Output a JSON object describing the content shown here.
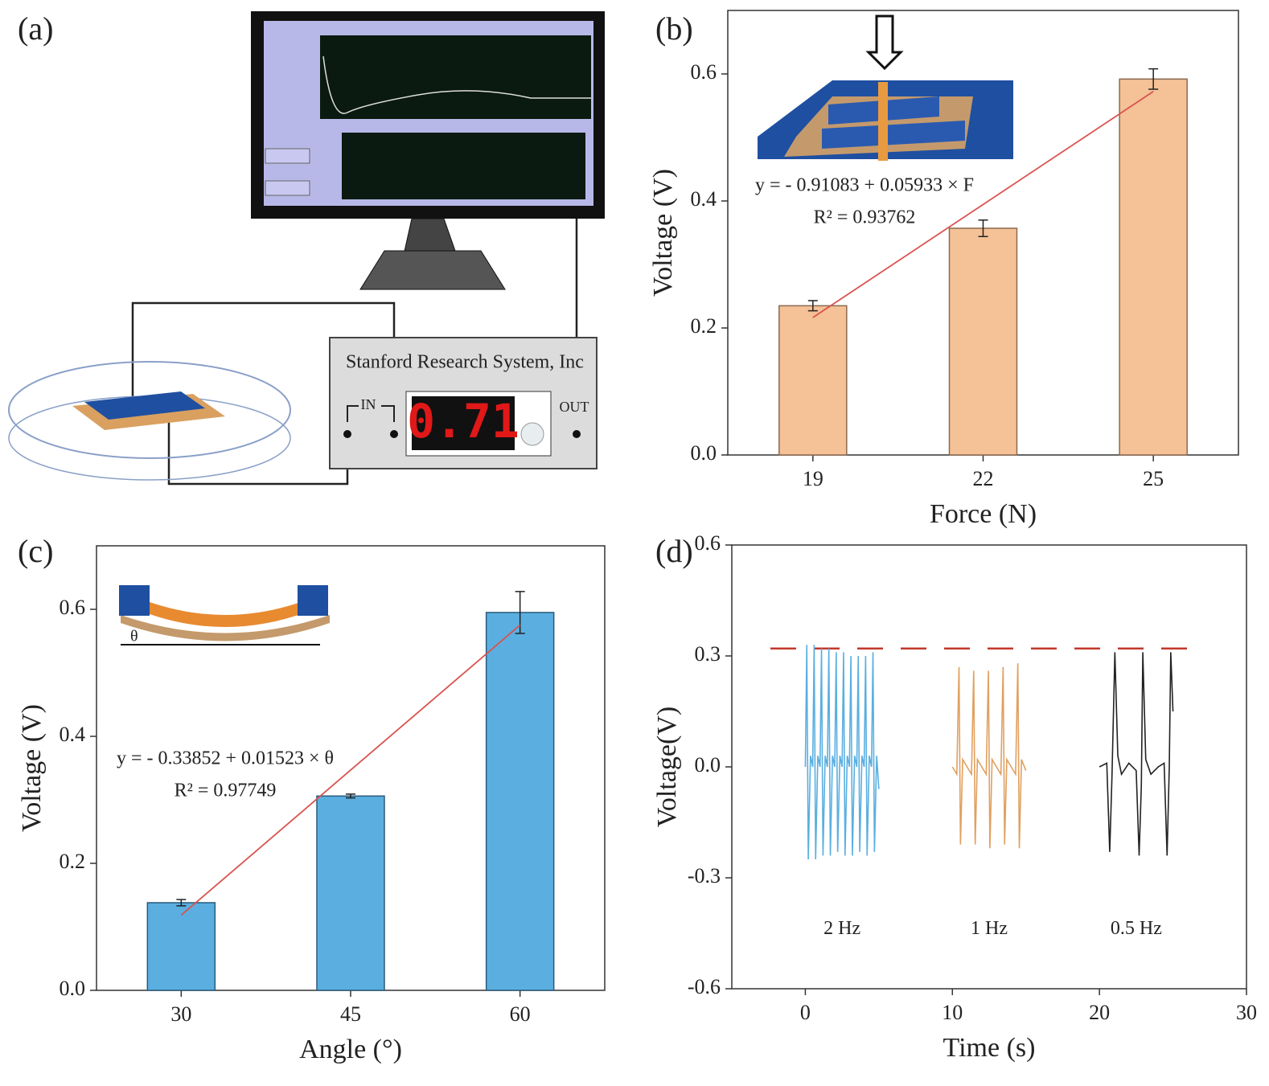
{
  "diagram": {
    "label": "(a)",
    "instrument": "Stanford Research System, Inc",
    "input": "IN",
    "output": "OUT",
    "display": "0.71"
  },
  "chart_data": [
    {
      "type": "bar",
      "label": "(b)",
      "xlabel": "Force (N)",
      "ylabel": "Voltage (V)",
      "x": [
        19,
        22,
        25
      ],
      "values": [
        0.235,
        0.357,
        0.592
      ],
      "errors": [
        0.008,
        0.013,
        0.016
      ],
      "color": "#f5c196",
      "edge": "#8a6a50",
      "xlim": [
        17.5,
        26.5
      ],
      "xticks": [
        19,
        22,
        25
      ],
      "ylim": [
        0,
        0.7
      ],
      "yticks": [
        {
          "value": 0,
          "label": "0.0"
        },
        0.2,
        0.4,
        0.6
      ],
      "fit": {
        "intercept": -0.91083,
        "slope": 0.05933,
        "color": "#d9534f"
      },
      "annotations": [
        "y = - 0.91083 + 0.05933 × F",
        "R² = 0.93762"
      ]
    },
    {
      "type": "bar",
      "label": "(c)",
      "xlabel": "Angle (°)",
      "ylabel": "Voltage (V)",
      "x": [
        30,
        45,
        60
      ],
      "values": [
        0.138,
        0.306,
        0.595
      ],
      "errors": [
        0.005,
        0.003,
        0.033
      ],
      "color": "#5aafe0",
      "edge": "#2a5a7a",
      "xlim": [
        22.5,
        67.5
      ],
      "xticks": [
        30,
        45,
        60
      ],
      "ylim": [
        0,
        0.7
      ],
      "yticks": [
        {
          "value": 0,
          "label": "0.0"
        },
        0.2,
        0.4,
        0.6
      ],
      "fit": {
        "intercept": -0.33852,
        "slope": 0.01523,
        "color": "#d9534f"
      },
      "annotations": [
        "y = - 0.33852 + 0.01523 × θ",
        "R² = 0.97749"
      ]
    },
    {
      "type": "line",
      "label": "(d)",
      "xlabel": "Time (s)",
      "ylabel": "Voltage(V)",
      "xlim": [
        -5,
        30
      ],
      "xticks": [
        0,
        10,
        20,
        30
      ],
      "ylim": [
        -0.6,
        0.6
      ],
      "yticks": [
        {
          "value": -0.6,
          "label": "-0.6"
        },
        {
          "value": -0.3,
          "label": "-0.3"
        },
        {
          "value": 0,
          "label": "0.0"
        },
        {
          "value": 0.3,
          "label": "0.3"
        },
        {
          "value": 0.6,
          "label": "0.6"
        }
      ],
      "reference_line": {
        "value": 0.32,
        "color": "#c0392b"
      },
      "series": [
        {
          "name": "2 Hz",
          "color": "#5aafe0",
          "x": [
            0,
            0.1,
            0.2,
            0.35,
            0.5,
            0.6,
            0.7,
            0.85,
            1.0,
            1.1,
            1.2,
            1.35,
            1.5,
            1.6,
            1.7,
            1.85,
            2.0,
            2.1,
            2.2,
            2.35,
            2.5,
            2.6,
            2.7,
            2.85,
            3.0,
            3.1,
            3.2,
            3.35,
            3.5,
            3.6,
            3.7,
            3.85,
            4.0,
            4.1,
            4.2,
            4.35,
            4.5,
            4.6,
            4.7,
            4.85,
            5.0
          ],
          "values": [
            0,
            0.33,
            -0.25,
            0.03,
            0,
            0.33,
            -0.25,
            0.03,
            0,
            0.32,
            -0.24,
            0.03,
            0,
            0.32,
            -0.24,
            0.03,
            0,
            0.31,
            -0.23,
            0.03,
            0,
            0.31,
            -0.24,
            0.03,
            0,
            0.3,
            -0.24,
            0.03,
            0,
            0.3,
            -0.23,
            0.03,
            0,
            0.3,
            -0.24,
            0.03,
            0,
            0.31,
            -0.23,
            0.03,
            -0.06
          ]
        },
        {
          "name": "1 Hz",
          "color": "#e0a060",
          "x": [
            10,
            10.3,
            10.45,
            10.55,
            10.7,
            11.0,
            11.3,
            11.45,
            11.55,
            11.7,
            12.0,
            12.3,
            12.45,
            12.55,
            12.7,
            13.0,
            13.3,
            13.45,
            13.55,
            13.7,
            14.0,
            14.3,
            14.45,
            14.55,
            14.7,
            15.0
          ],
          "values": [
            0,
            -0.02,
            0.27,
            -0.21,
            0.02,
            0,
            -0.02,
            0.26,
            -0.21,
            0.02,
            0,
            -0.02,
            0.26,
            -0.22,
            0.02,
            0,
            -0.02,
            0.27,
            -0.21,
            0.02,
            0,
            -0.02,
            0.28,
            -0.22,
            0.02,
            -0.01
          ]
        },
        {
          "name": "0.5 Hz",
          "color": "#222222",
          "x": [
            20,
            20.5,
            20.7,
            20.85,
            21.05,
            21.25,
            21.5,
            22,
            22.5,
            22.7,
            22.85,
            22.95,
            23.15,
            23.5,
            24,
            24.4,
            24.6,
            24.75,
            24.85,
            25
          ],
          "values": [
            0,
            0.01,
            -0.23,
            -0.03,
            0.31,
            0.03,
            -0.02,
            0.01,
            -0.01,
            -0.24,
            -0.05,
            0.31,
            0.02,
            -0.02,
            0,
            0.01,
            -0.24,
            0,
            0.31,
            0.15
          ]
        }
      ]
    }
  ]
}
